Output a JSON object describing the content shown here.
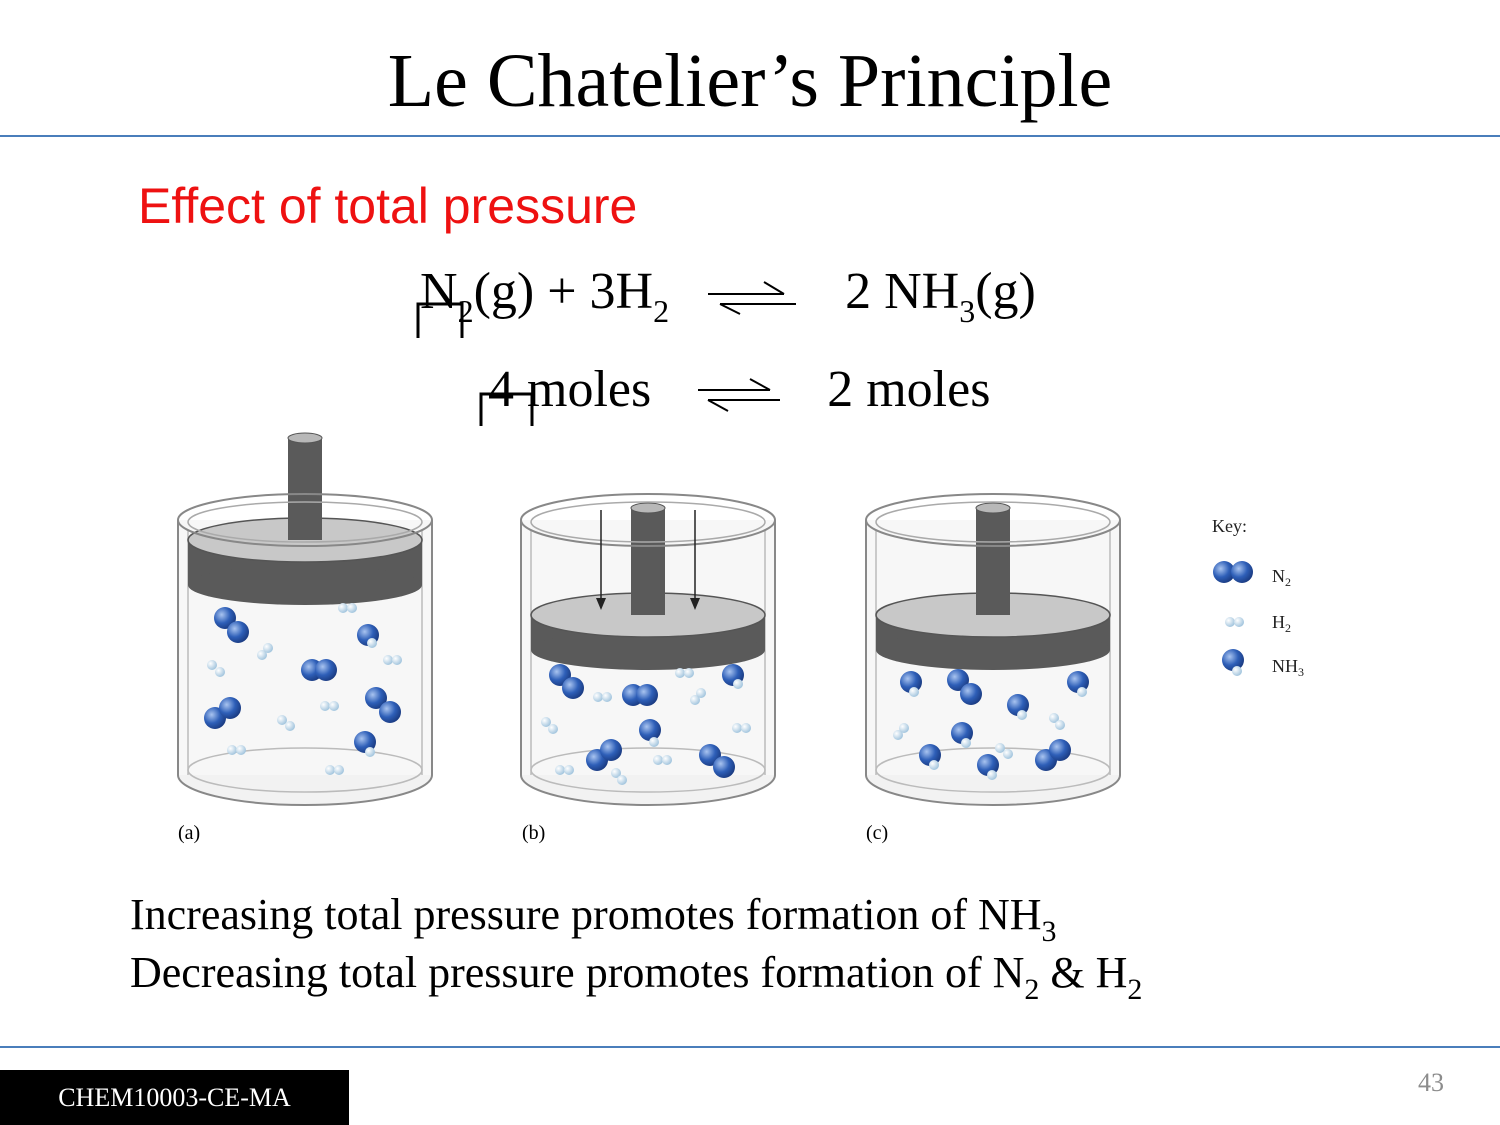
{
  "slide": {
    "title": "Le Chatelier’s Principle",
    "subtitle": "Effect of total pressure",
    "equation": {
      "reactant1": "N",
      "reactant1_sub": "2",
      "reactant1_state": "(g) + 3H",
      "reactant2_sub": "2",
      "product_coef": "2 NH",
      "product_sub": "3",
      "product_state": "(g)"
    },
    "moles": {
      "left": "4 moles",
      "right": "2 moles"
    },
    "figure": {
      "labels": [
        "(a)",
        "(b)",
        "(c)"
      ],
      "key_title": "Key:",
      "key_items": [
        {
          "name": "N",
          "sub": "2"
        },
        {
          "name": "H",
          "sub": "2"
        },
        {
          "name": "NH",
          "sub": "3"
        }
      ],
      "colors": {
        "n2": "#2e5fb8",
        "h2": "#c0d8ea",
        "piston": "#5a5a5a",
        "piston_top": "#c8c8c8"
      }
    },
    "statements": {
      "line1_text": "Increasing total pressure promotes formation of NH",
      "line1_sub": "3",
      "line2_text": "Decreasing total pressure promotes formation of N",
      "line2_sub1": "2",
      "line2_mid": " & H",
      "line2_sub2": "2"
    },
    "footer": {
      "course_code": "CHEM10003-CE-MA",
      "page_number": "43"
    }
  }
}
